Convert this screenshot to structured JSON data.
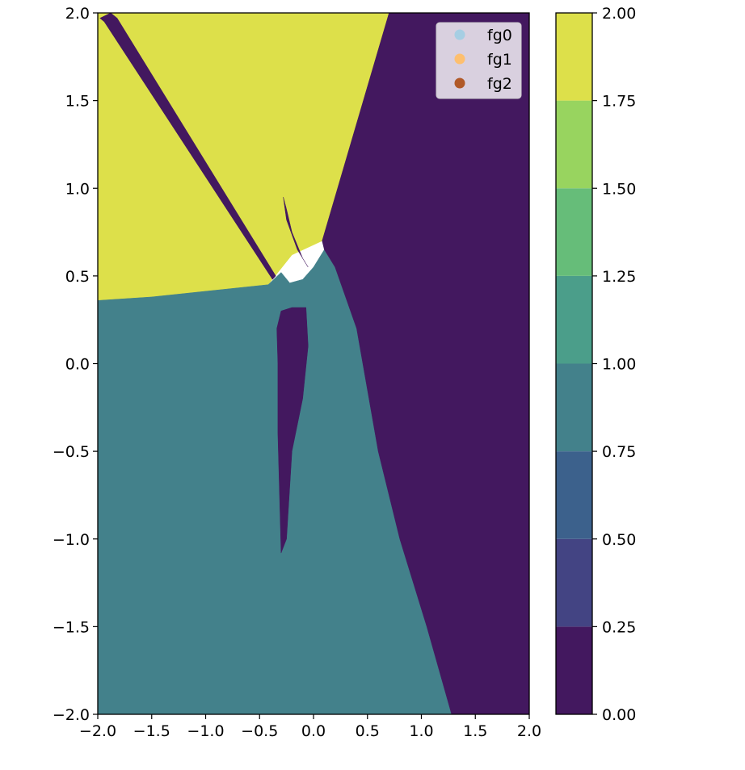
{
  "chart_data": {
    "type": "heatmap",
    "title": "",
    "xlabel": "",
    "ylabel": "",
    "xlim": [
      -2.0,
      2.0
    ],
    "ylim": [
      -2.0,
      2.0
    ],
    "xticks": [
      "−2.0",
      "−1.5",
      "−1.0",
      "−0.5",
      "0.0",
      "0.5",
      "1.0",
      "1.5",
      "2.0"
    ],
    "yticks": [
      "2.0",
      "1.5",
      "1.0",
      "0.5",
      "0.0",
      "−0.5",
      "−1.0",
      "−1.5",
      "−2.0"
    ],
    "x_values": [
      -2.0,
      -1.5,
      -1.0,
      -0.5,
      0.0,
      0.5,
      1.0,
      1.5,
      2.0
    ],
    "y_values": [
      2.0,
      1.5,
      1.0,
      0.5,
      0.0,
      -0.5,
      -1.0,
      -1.5,
      -2.0
    ],
    "grid": false,
    "legend_position": "top-right",
    "legend": [
      {
        "label": "fg0",
        "color": "#a6cee3"
      },
      {
        "label": "fg1",
        "color": "#fdbf6f"
      },
      {
        "label": "fg2",
        "color": "#b15928"
      }
    ],
    "regions": [
      {
        "class_value": 2,
        "color": "#dde04a",
        "polygon": [
          [
            -2.0,
            2.0
          ],
          [
            0.7,
            2.0
          ],
          [
            0.08,
            0.7
          ],
          [
            -0.2,
            0.62
          ],
          [
            -0.42,
            0.45
          ],
          [
            -1.5,
            0.38
          ],
          [
            -2.0,
            0.36
          ]
        ]
      },
      {
        "class_value": 1,
        "color": "#43818b",
        "polygon": [
          [
            -2.0,
            0.36
          ],
          [
            -1.5,
            0.38
          ],
          [
            -0.42,
            0.45
          ],
          [
            -0.3,
            0.52
          ],
          [
            -0.22,
            0.46
          ],
          [
            -0.1,
            0.48
          ],
          [
            0.0,
            0.55
          ],
          [
            0.1,
            0.65
          ],
          [
            0.2,
            0.55
          ],
          [
            0.4,
            0.2
          ],
          [
            0.6,
            -0.5
          ],
          [
            0.8,
            -1.0
          ],
          [
            1.05,
            -1.5
          ],
          [
            1.28,
            -2.0
          ],
          [
            -2.0,
            -2.0
          ]
        ]
      },
      {
        "class_value": 0,
        "color": "#43185f",
        "polygon": [
          [
            0.7,
            2.0
          ],
          [
            2.0,
            2.0
          ],
          [
            2.0,
            -2.0
          ],
          [
            1.28,
            -2.0
          ],
          [
            1.05,
            -1.5
          ],
          [
            0.8,
            -1.0
          ],
          [
            0.6,
            -0.5
          ],
          [
            0.4,
            0.2
          ],
          [
            0.2,
            0.55
          ],
          [
            0.1,
            0.65
          ],
          [
            0.08,
            0.7
          ]
        ]
      },
      {
        "class_value": 0,
        "color": "#43185f",
        "polygon": [
          [
            -1.98,
            1.97
          ],
          [
            -1.88,
            2.0
          ],
          [
            -1.82,
            1.97
          ],
          [
            -0.35,
            0.5
          ],
          [
            -0.38,
            0.48
          ],
          [
            -1.94,
            1.95
          ]
        ]
      },
      {
        "class_value": 0,
        "color": "#43185f",
        "polygon": [
          [
            -0.3,
            0.3
          ],
          [
            -0.2,
            0.32
          ],
          [
            -0.07,
            0.32
          ],
          [
            -0.05,
            0.1
          ],
          [
            -0.1,
            -0.2
          ],
          [
            -0.2,
            -0.5
          ],
          [
            -0.25,
            -1.0
          ],
          [
            -0.3,
            -1.08
          ],
          [
            -0.33,
            -0.4
          ],
          [
            -0.33,
            0.0
          ],
          [
            -0.34,
            0.2
          ]
        ]
      },
      {
        "class_value": 0,
        "color": "#43185f",
        "polygon": [
          [
            -0.28,
            0.95
          ],
          [
            -0.25,
            0.88
          ],
          [
            -0.2,
            0.75
          ],
          [
            -0.1,
            0.6
          ],
          [
            -0.05,
            0.55
          ],
          [
            -0.15,
            0.65
          ],
          [
            -0.25,
            0.82
          ]
        ]
      }
    ],
    "colorbar": {
      "min": 0.0,
      "max": 2.0,
      "levels": [
        0.0,
        0.25,
        0.5,
        0.75,
        1.0,
        1.25,
        1.5,
        1.75,
        2.0
      ],
      "level_colors": [
        "#43185f",
        "#434483",
        "#3c618c",
        "#43818b",
        "#4b9e8a",
        "#66bd79",
        "#98d45f",
        "#dde04a"
      ],
      "tick_labels": [
        "0.00",
        "0.25",
        "0.50",
        "0.75",
        "1.00",
        "1.25",
        "1.50",
        "1.75",
        "2.00"
      ]
    }
  }
}
